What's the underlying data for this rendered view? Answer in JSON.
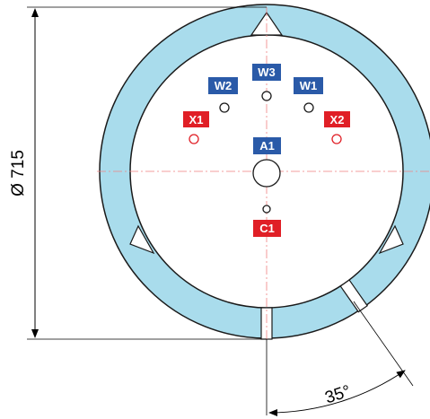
{
  "dimensions": {
    "diameter_label": "Ø 715",
    "angle_label": "35°"
  },
  "colors": {
    "ring": "#a9dcec",
    "blue_badge": "#2a5aa8",
    "red_badge": "#e01f26",
    "outline": "#1a1a1a",
    "red_hole": "#e01f26",
    "centerline": "#f08080"
  },
  "badges": [
    {
      "id": "W3",
      "label": "W3",
      "color": "blue"
    },
    {
      "id": "W2",
      "label": "W2",
      "color": "blue"
    },
    {
      "id": "W1",
      "label": "W1",
      "color": "blue"
    },
    {
      "id": "X1",
      "label": "X1",
      "color": "red"
    },
    {
      "id": "X2",
      "label": "X2",
      "color": "red"
    },
    {
      "id": "A1",
      "label": "A1",
      "color": "blue"
    },
    {
      "id": "C1",
      "label": "C1",
      "color": "red"
    }
  ]
}
